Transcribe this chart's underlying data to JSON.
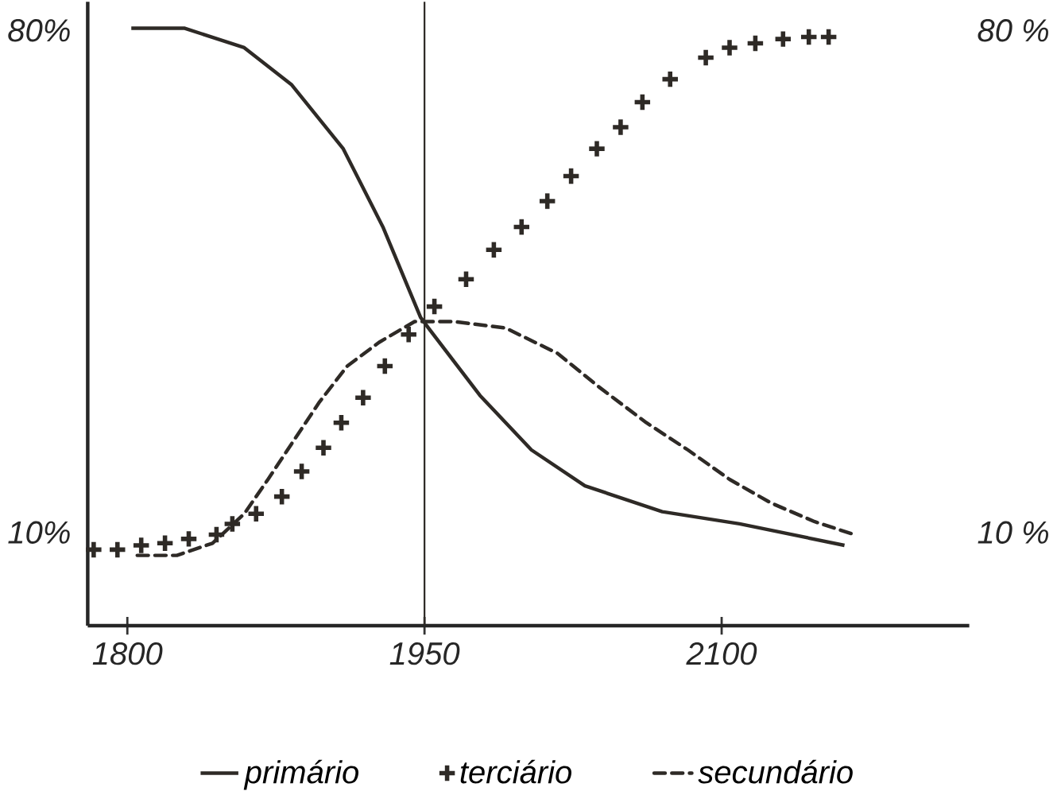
{
  "chart_data": {
    "type": "line",
    "xlim": [
      1780,
      2225
    ],
    "ylim": [
      -3,
      84
    ],
    "y2lim": [
      -3,
      84
    ],
    "xticks": [
      1800,
      1950,
      2100
    ],
    "yticks": [
      {
        "value": 10,
        "label": "10%"
      },
      {
        "value": 80,
        "label": "80%"
      }
    ],
    "y2ticks": [
      {
        "value": 10,
        "label": "10 %"
      },
      {
        "value": 80,
        "label": "80 %"
      }
    ],
    "legend": "bottom",
    "ref_lines": [
      {
        "axis": "x",
        "value": 1950,
        "color": "#2e2a26"
      }
    ],
    "series": [
      {
        "name": "primário",
        "line_style": "solid",
        "color": "#2e2a26",
        "x": [
          1802,
          1829,
          1859,
          1883,
          1909,
          1929,
          1948,
          1952,
          1978,
          2004,
          2031,
          2070,
          2109,
          2162
        ],
        "values": [
          80.3,
          80.3,
          77.6,
          72.4,
          63.5,
          52.6,
          40,
          38.5,
          29.1,
          21.5,
          16.5,
          12.9,
          11.2,
          8.2
        ]
      },
      {
        "name": "terciário",
        "type": "scatter",
        "marker": "cross",
        "color": "#2e2a26",
        "x": [
          1783,
          1795,
          1807,
          1819,
          1831,
          1845,
          1853,
          1865,
          1878,
          1888,
          1899,
          1908,
          1919,
          1930,
          1942,
          1955,
          1971,
          1985,
          1999,
          2012,
          2024,
          2037,
          2049,
          2060,
          2074,
          2092,
          2104,
          2117,
          2131,
          2144,
          2154
        ],
        "values": [
          7.6,
          7.6,
          8.2,
          8.5,
          9.1,
          9.7,
          11.2,
          12.6,
          15,
          18.5,
          21.8,
          25.3,
          28.8,
          33.2,
          37.6,
          41.5,
          45.3,
          49.4,
          52.6,
          56.2,
          59.7,
          63.5,
          66.5,
          70,
          73.2,
          76.2,
          77.6,
          78.2,
          78.8,
          79.1,
          79.1
        ]
      },
      {
        "name": "secundário",
        "line_style": "dashed",
        "color": "#2e2a26",
        "x": [
          1805,
          1825,
          1843,
          1859,
          1871,
          1883,
          1897,
          1911,
          1927,
          1945,
          1965,
          1991,
          2017,
          2038,
          2062,
          2083,
          2104,
          2125,
          2147,
          2167
        ],
        "values": [
          6.8,
          6.8,
          8.5,
          12.6,
          17.4,
          22.4,
          28.2,
          33.2,
          36.5,
          39.4,
          39.4,
          38.5,
          35,
          30.3,
          25.3,
          21.5,
          17.4,
          14.1,
          11.5,
          9.7
        ]
      }
    ]
  }
}
